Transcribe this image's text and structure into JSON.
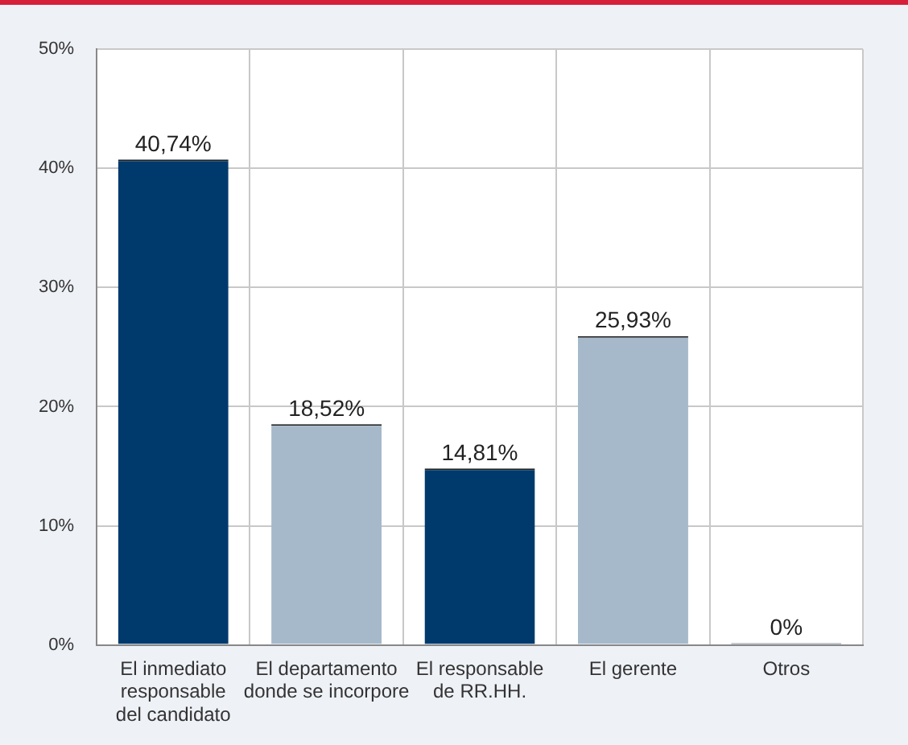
{
  "chart_data": {
    "type": "bar",
    "categories": [
      "El inmediato\nresponsable\ndel candidato",
      "El departamento\ndonde se incorpore",
      "El responsable\nde RR.HH.",
      "El gerente",
      "Otros"
    ],
    "values": [
      40.74,
      18.52,
      14.81,
      25.93,
      0
    ],
    "colors": [
      "#003a6c",
      "#a6b9cb",
      "#003a6c",
      "#a6b9cb",
      "#003a6c"
    ],
    "value_labels": [
      "40,74%",
      "18,52%",
      "14,81%",
      "25,93%",
      "0%"
    ],
    "ylim": [
      0,
      50
    ],
    "yticks": [
      {
        "value": 0,
        "label": "0%"
      },
      {
        "value": 10,
        "label": "10%"
      },
      {
        "value": 20,
        "label": "20%"
      },
      {
        "value": 30,
        "label": "30%"
      },
      {
        "value": 40,
        "label": "40%"
      },
      {
        "value": 50,
        "label": "50%"
      }
    ],
    "grid": true
  }
}
